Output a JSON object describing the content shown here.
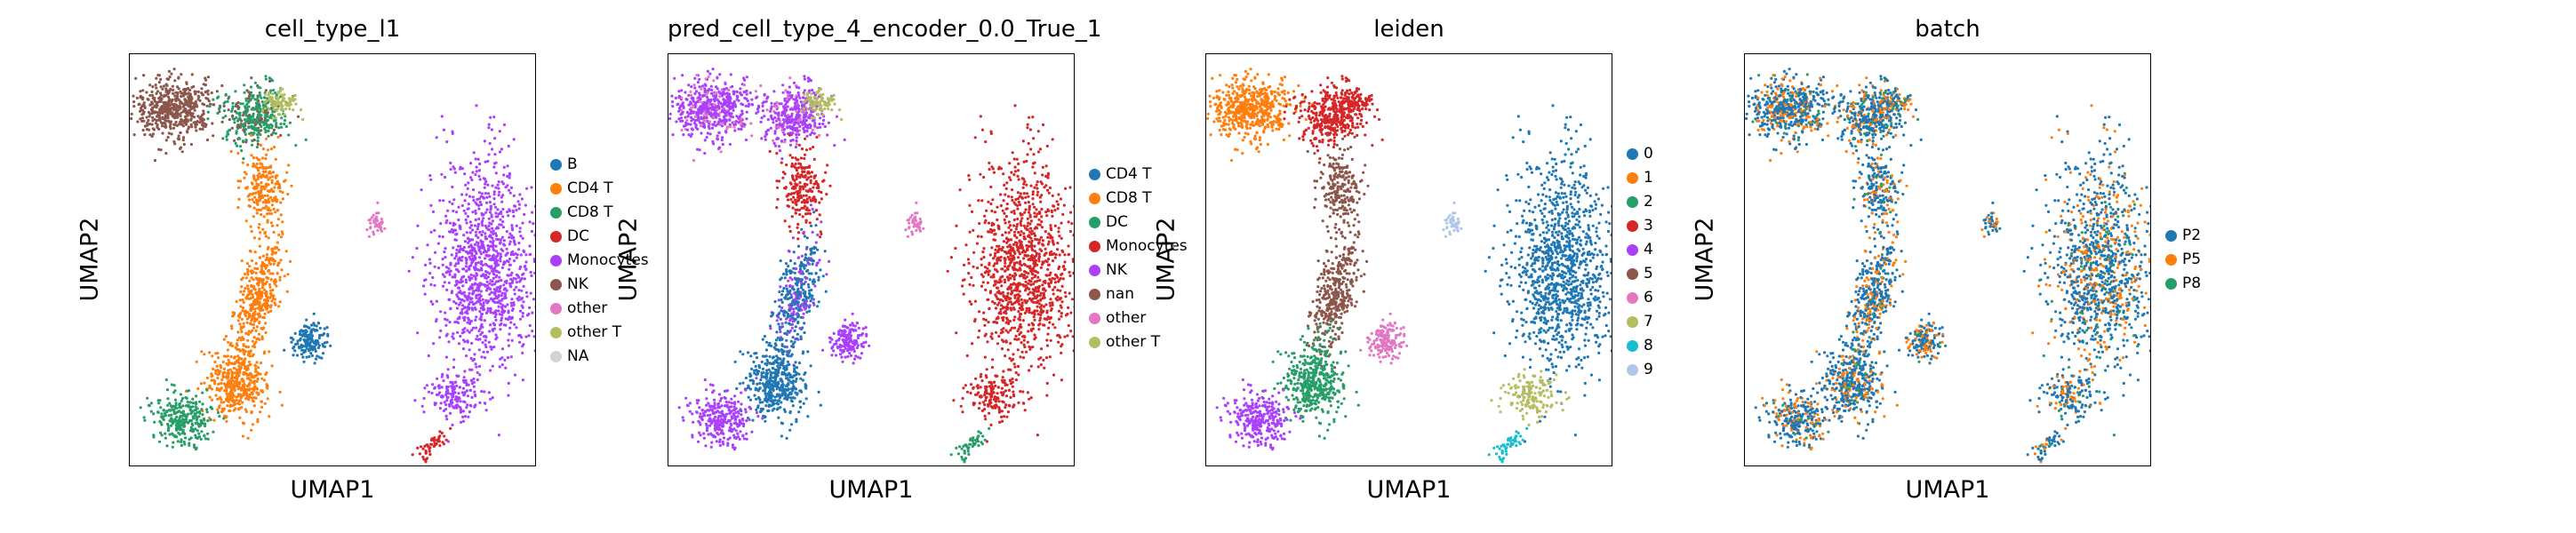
{
  "chart_data": [
    {
      "type": "scatter",
      "title": "cell_type_l1",
      "xlabel": "UMAP1",
      "ylabel": "UMAP2",
      "grid": false,
      "legend_position": "right",
      "series": [
        {
          "name": "B",
          "color": "#1f77b4"
        },
        {
          "name": "CD4 T",
          "color": "#ff7f0e"
        },
        {
          "name": "CD8 T",
          "color": "#279e68"
        },
        {
          "name": "DC",
          "color": "#d62728"
        },
        {
          "name": "Monocytes",
          "color": "#aa40fc"
        },
        {
          "name": "NK",
          "color": "#8c564b"
        },
        {
          "name": "other",
          "color": "#e377c2"
        },
        {
          "name": "other T",
          "color": "#b5bd61"
        },
        {
          "name": "NA",
          "color": "#d3d3d3"
        }
      ]
    },
    {
      "type": "scatter",
      "title": "pred_cell_type_4_encoder_0.0_True_1",
      "xlabel": "UMAP1",
      "ylabel": "UMAP2",
      "grid": false,
      "legend_position": "right",
      "series": [
        {
          "name": "CD4 T",
          "color": "#1f77b4"
        },
        {
          "name": "CD8 T",
          "color": "#ff7f0e"
        },
        {
          "name": "DC",
          "color": "#279e68"
        },
        {
          "name": "Monocytes",
          "color": "#d62728"
        },
        {
          "name": "NK",
          "color": "#aa40fc"
        },
        {
          "name": "nan",
          "color": "#8c564b"
        },
        {
          "name": "other",
          "color": "#e377c2"
        },
        {
          "name": "other T",
          "color": "#b5bd61"
        }
      ]
    },
    {
      "type": "scatter",
      "title": "leiden",
      "xlabel": "UMAP1",
      "ylabel": "UMAP2",
      "grid": false,
      "legend_position": "right",
      "series": [
        {
          "name": "0",
          "color": "#1f77b4"
        },
        {
          "name": "1",
          "color": "#ff7f0e"
        },
        {
          "name": "2",
          "color": "#279e68"
        },
        {
          "name": "3",
          "color": "#d62728"
        },
        {
          "name": "4",
          "color": "#aa40fc"
        },
        {
          "name": "5",
          "color": "#8c564b"
        },
        {
          "name": "6",
          "color": "#e377c2"
        },
        {
          "name": "7",
          "color": "#b5bd61"
        },
        {
          "name": "8",
          "color": "#17becf"
        },
        {
          "name": "9",
          "color": "#aec7e8"
        }
      ]
    },
    {
      "type": "scatter",
      "title": "batch",
      "xlabel": "UMAP1",
      "ylabel": "UMAP2",
      "grid": false,
      "legend_position": "right",
      "series": [
        {
          "name": "P2",
          "color": "#1f77b4"
        },
        {
          "name": "P5",
          "color": "#ff7f0e"
        },
        {
          "name": "P8",
          "color": "#279e68"
        }
      ]
    }
  ]
}
